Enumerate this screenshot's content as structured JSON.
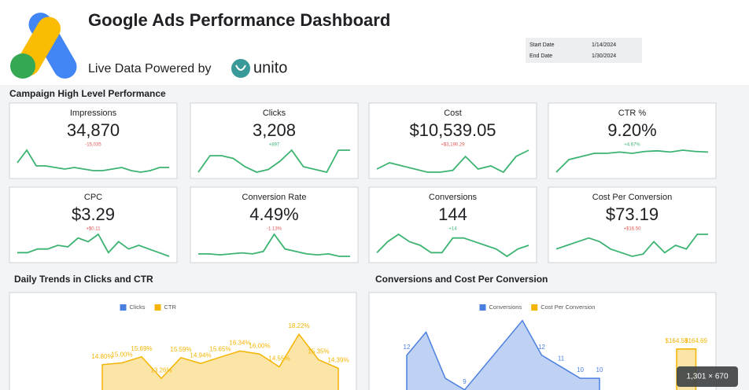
{
  "header": {
    "title": "Google Ads Performance Dashboard",
    "subtitle": "Live Data Powered by",
    "brand": "unito",
    "dates": [
      {
        "label": "Start Date",
        "value": "1/14/2024"
      },
      {
        "label": "End Date",
        "value": "1/30/2024"
      }
    ]
  },
  "section_title": "Campaign High Level Performance",
  "sparkline_color": "#3cb371",
  "kpis": [
    {
      "label": "Impressions",
      "value": "34,870",
      "change": "-15,035",
      "change_color": "#e05555",
      "sparkline": [
        3,
        7,
        2,
        2,
        1.5,
        1,
        1.5,
        1,
        0.5,
        0.5,
        1,
        1.5,
        0.5,
        0,
        0.5,
        1.5,
        1.5
      ]
    },
    {
      "label": "Clicks",
      "value": "3,208",
      "change": "+897",
      "change_color": "#3cb371",
      "sparkline": [
        1,
        4,
        4,
        3.5,
        2,
        1,
        1.5,
        3,
        5,
        2,
        1.5,
        1,
        5,
        5
      ]
    },
    {
      "label": "Cost",
      "value": "$10,539.05",
      "change": "+$3,190.29",
      "change_color": "#e05555",
      "sparkline": [
        1,
        2,
        1.5,
        1,
        0.5,
        0.5,
        0.8,
        3,
        1,
        1.5,
        0.5,
        3,
        4
      ]
    },
    {
      "label": "CTR %",
      "value": "9.20%",
      "change": "+4.67%",
      "change_color": "#3cb371",
      "sparkline": [
        0,
        2,
        2.5,
        3,
        3,
        3.2,
        3,
        3.3,
        3.4,
        3.2,
        3.5,
        3.3,
        3.2
      ]
    },
    {
      "label": "CPC",
      "value": "$3.29",
      "change": "+$0.11",
      "change_color": "#e05555",
      "sparkline": [
        2,
        2,
        2.5,
        2.5,
        3,
        2.8,
        4,
        3.5,
        4.5,
        2,
        3.5,
        2.5,
        3,
        2.5,
        2,
        1.5
      ]
    },
    {
      "label": "Conversion Rate",
      "value": "4.49%",
      "change": "-1.13%",
      "change_color": "#e05555",
      "sparkline": [
        1,
        1,
        0.8,
        1,
        1.2,
        1,
        1.5,
        5,
        2,
        1.5,
        1,
        0.8,
        1,
        0.5,
        0.5
      ]
    },
    {
      "label": "Conversions",
      "value": "144",
      "change": "+14",
      "change_color": "#3cb371",
      "sparkline": [
        1,
        2.5,
        3.5,
        2.5,
        2,
        1,
        1,
        3,
        3,
        2.5,
        2,
        1.5,
        0.5,
        1.5,
        2
      ]
    },
    {
      "label": "Cost Per Conversion",
      "value": "$73.19",
      "change": "+$16.50",
      "change_color": "#e05555",
      "sparkline": [
        1,
        1.5,
        2,
        2.5,
        2,
        1,
        0.5,
        0,
        0.3,
        2,
        0.5,
        1.5,
        1,
        3,
        3
      ]
    }
  ],
  "charts": [
    {
      "type": "area",
      "title": "Daily Trends in Clicks and CTR",
      "ylim": [
        10,
        20
      ],
      "series": [
        {
          "name": "Clicks",
          "color": "#4a7fe0"
        },
        {
          "name": "CTR",
          "color": "#f4b400",
          "values": [
            14.8,
            15.0,
            15.69,
            13.26,
            15.59,
            14.94,
            15.65,
            16.34,
            16.0,
            14.55,
            18.22,
            15.35,
            14.39
          ],
          "value_labels": [
            "14.80%",
            "15.00%",
            "15.69%",
            "13.26%",
            "15.59%",
            "14.94%",
            "15.65%",
            "16.34%",
            "16.00%",
            "14.55%",
            "18.22%",
            "15.35%",
            "14.39%"
          ]
        }
      ]
    },
    {
      "type": "area",
      "title": "Conversions and Cost Per Conversion",
      "ylim": [
        0,
        16
      ],
      "y2lim": [
        0,
        210
      ],
      "series": [
        {
          "name": "Conversions",
          "color": "#4a7fe0",
          "values": [
            12,
            14,
            10,
            9,
            11,
            13,
            15,
            12,
            11,
            10,
            10,
            null,
            null,
            null,
            null,
            null
          ],
          "value_labels": [
            "12",
            null,
            null,
            "9",
            null,
            null,
            null,
            "12",
            "11",
            "10",
            "10",
            null,
            null,
            null,
            null,
            null
          ]
        },
        {
          "name": "Cost Per Conversion",
          "color": "#f4b400",
          "axis": "y2",
          "values": [
            null,
            null,
            null,
            null,
            null,
            null,
            null,
            null,
            null,
            null,
            null,
            null,
            null,
            null,
            164.59,
            164.69
          ],
          "value_labels": [
            null,
            null,
            null,
            null,
            null,
            null,
            null,
            null,
            null,
            null,
            null,
            null,
            null,
            null,
            "$164.59",
            "$164.69"
          ]
        }
      ]
    }
  ],
  "image_size": "1,301 × 670"
}
